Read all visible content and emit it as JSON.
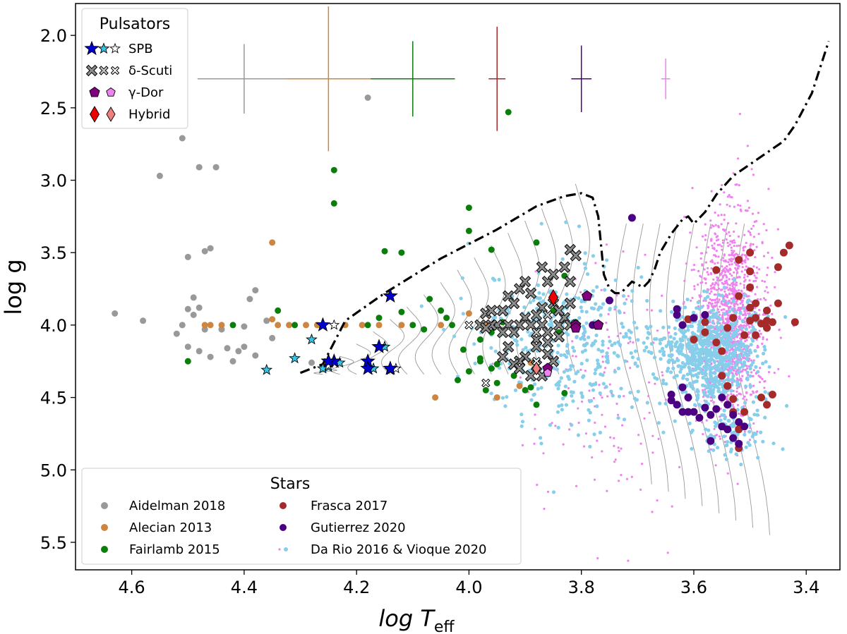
{
  "chart_data": {
    "type": "scatter",
    "xlabel_main": "log T",
    "xlabel_sub": "eff",
    "ylabel": "log g",
    "xlim": [
      4.7,
      3.34
    ],
    "ylim": [
      5.69,
      1.78
    ],
    "x_ticks": [
      "4.6",
      "4.4",
      "4.2",
      "4.0",
      "3.8",
      "3.6",
      "3.4"
    ],
    "x_tick_values": [
      4.6,
      4.4,
      4.2,
      4.0,
      3.8,
      3.6,
      3.4
    ],
    "y_ticks": [
      "2.0",
      "2.5",
      "3.0",
      "3.5",
      "4.0",
      "4.5",
      "5.0",
      "5.5"
    ],
    "y_tick_values": [
      2.0,
      2.5,
      3.0,
      3.5,
      4.0,
      4.5,
      5.0,
      5.5
    ],
    "colors": {
      "aidelman": "#999999",
      "alecian": "#cd853f",
      "fairlamb": "#0b7d0b",
      "frasca": "#a52a2a",
      "gutierrez": "#4b0082",
      "darioVioque": "#87ceeb",
      "darioPink": "#ee82ee",
      "spbDark": "#0000cc",
      "spbLight": "#33c4e6",
      "deltaGray": "#8c8c8c",
      "gammaDark": "#800080",
      "gammaLight": "#ee82ee",
      "hybridDark": "#ee0000",
      "hybridLight": "#f08080"
    },
    "error_bars": [
      {
        "x": 4.4,
        "y": 2.3,
        "dx": 0.083,
        "dy_up": 0.24,
        "dy_down": 0.24,
        "color": "#999999"
      },
      {
        "x": 4.25,
        "y": 2.3,
        "dx": 0.075,
        "dy_up": 0.5,
        "dy_down": 0.5,
        "color": "#cd853f"
      },
      {
        "x": 4.1,
        "y": 2.3,
        "dx": 0.075,
        "dy_up": 0.26,
        "dy_down": 0.26,
        "color": "#0b7d0b"
      },
      {
        "x": 3.95,
        "y": 2.3,
        "dx": 0.015,
        "dy_up": 0.36,
        "dy_down": 0.36,
        "color": "#a52a2a"
      },
      {
        "x": 3.8,
        "y": 2.3,
        "dx": 0.018,
        "dy_up": 0.23,
        "dy_down": 0.23,
        "color": "#4b0082"
      },
      {
        "x": 3.65,
        "y": 2.3,
        "dx": 0.008,
        "dy_up": 0.14,
        "dy_down": 0.14,
        "color": "#ee82ee"
      }
    ],
    "series": [
      {
        "name": "Aidelman 2018",
        "marker": "circle",
        "color": "#999999",
        "points": [
          [
            4.63,
            3.92
          ],
          [
            4.58,
            3.97
          ],
          [
            4.55,
            2.97
          ],
          [
            4.51,
            2.71
          ],
          [
            4.5,
            3.53
          ],
          [
            4.49,
            3.81
          ],
          [
            4.48,
            3.88
          ],
          [
            4.47,
            3.49
          ],
          [
            4.46,
            3.47
          ],
          [
            4.45,
            2.91
          ],
          [
            4.48,
            2.91
          ],
          [
            4.5,
            3.89
          ],
          [
            4.49,
            3.93
          ],
          [
            4.51,
            4.0
          ],
          [
            4.52,
            4.06
          ],
          [
            4.47,
            4.03
          ],
          [
            4.5,
            4.15
          ],
          [
            4.48,
            4.18
          ],
          [
            4.44,
            4.03
          ],
          [
            4.43,
            4.16
          ],
          [
            4.41,
            4.18
          ],
          [
            4.42,
            4.25
          ],
          [
            4.39,
            3.82
          ],
          [
            4.38,
            3.76
          ],
          [
            4.36,
            3.97
          ],
          [
            4.4,
            4.01
          ],
          [
            4.35,
            4.09
          ],
          [
            4.38,
            4.21
          ],
          [
            4.46,
            4.22
          ],
          [
            4.28,
            4.26
          ],
          [
            4.18,
            2.43
          ],
          [
            4.4,
            4.15
          ]
        ]
      },
      {
        "name": "Alecian 2013",
        "marker": "circle",
        "color": "#cd853f",
        "points": [
          [
            4.47,
            4.0
          ],
          [
            4.44,
            4.0
          ],
          [
            4.46,
            4.0
          ],
          [
            4.34,
            4.0
          ],
          [
            4.29,
            4.0
          ],
          [
            4.35,
            3.96
          ],
          [
            4.32,
            4.0
          ],
          [
            4.27,
            4.0
          ],
          [
            4.16,
            4.0
          ],
          [
            4.12,
            4.0
          ],
          [
            4.35,
            3.43
          ],
          [
            4.22,
            4.0
          ],
          [
            4.19,
            4.0
          ],
          [
            4.05,
            4.0
          ],
          [
            4.0,
            3.92
          ],
          [
            4.06,
            4.5
          ],
          [
            3.95,
            4.5
          ],
          [
            3.97,
            4.0
          ],
          [
            3.91,
            4.42
          ],
          [
            3.89,
            4.26
          ],
          [
            3.86,
            4.33
          ]
        ]
      },
      {
        "name": "Fairlamb 2015",
        "marker": "circle",
        "color": "#0b7d0b",
        "points": [
          [
            4.5,
            4.25
          ],
          [
            4.42,
            4.0
          ],
          [
            4.34,
            3.9
          ],
          [
            4.31,
            4.0
          ],
          [
            4.24,
            2.93
          ],
          [
            4.24,
            3.16
          ],
          [
            4.15,
            3.49
          ],
          [
            4.12,
            3.5
          ],
          [
            4.18,
            4.0
          ],
          [
            4.16,
            3.95
          ],
          [
            4.1,
            4.0
          ],
          [
            4.03,
            4.0
          ],
          [
            4.07,
            3.82
          ],
          [
            4.05,
            3.9
          ],
          [
            4.04,
            3.95
          ],
          [
            4.0,
            3.19
          ],
          [
            4.0,
            3.35
          ],
          [
            3.96,
            3.48
          ],
          [
            3.93,
            2.53
          ],
          [
            4.01,
            4.17
          ],
          [
            4.0,
            4.32
          ],
          [
            4.02,
            4.38
          ],
          [
            3.98,
            4.23
          ],
          [
            3.96,
            4.05
          ],
          [
            3.98,
            4.25
          ],
          [
            3.95,
            4.27
          ],
          [
            3.96,
            4.3
          ],
          [
            3.92,
            4.35
          ],
          [
            3.95,
            4.4
          ],
          [
            3.89,
            4.43
          ],
          [
            3.88,
            4.55
          ],
          [
            3.85,
            3.9
          ],
          [
            3.84,
            4.05
          ],
          [
            3.83,
            4.47
          ],
          [
            3.81,
            3.98
          ],
          [
            3.83,
            3.66
          ],
          [
            3.88,
            3.43
          ],
          [
            4.12,
            3.91
          ],
          [
            4.08,
            4.03
          ],
          [
            3.98,
            4.1
          ],
          [
            3.94,
            3.98
          ],
          [
            3.9,
            4.45
          ],
          [
            3.97,
            4.45
          ]
        ]
      },
      {
        "name": "Frasca 2017",
        "marker": "circle",
        "color": "#a52a2a",
        "points": [
          [
            3.58,
            3.98
          ],
          [
            3.56,
            4.12
          ],
          [
            3.55,
            4.18
          ],
          [
            3.55,
            4.35
          ],
          [
            3.54,
            4.42
          ],
          [
            3.53,
            4.51
          ],
          [
            3.53,
            4.6
          ],
          [
            3.52,
            4.72
          ],
          [
            3.52,
            4.85
          ],
          [
            3.51,
            4.6
          ],
          [
            3.5,
            3.5
          ],
          [
            3.5,
            3.63
          ],
          [
            3.5,
            3.74
          ],
          [
            3.49,
            3.85
          ],
          [
            3.49,
            3.95
          ],
          [
            3.48,
            3.99
          ],
          [
            3.47,
            3.9
          ],
          [
            3.47,
            4.02
          ],
          [
            3.46,
            3.98
          ],
          [
            3.45,
            3.85
          ],
          [
            3.45,
            3.6
          ],
          [
            3.44,
            3.5
          ],
          [
            3.43,
            3.45
          ],
          [
            3.42,
            3.98
          ],
          [
            3.52,
            3.55
          ],
          [
            3.5,
            3.97
          ],
          [
            3.51,
            4.07
          ],
          [
            3.48,
            4.5
          ],
          [
            3.47,
            4.55
          ],
          [
            3.46,
            4.48
          ],
          [
            3.49,
            4.07
          ],
          [
            3.53,
            3.95
          ],
          [
            3.56,
            3.62
          ],
          [
            3.6,
            4.1
          ],
          [
            3.61,
            3.96
          ],
          [
            3.58,
            4.05
          ],
          [
            3.54,
            4.02
          ],
          [
            3.52,
            3.8
          ],
          [
            3.5,
            3.88
          ],
          [
            3.47,
            3.97
          ]
        ]
      },
      {
        "name": "Gutierrez 2020",
        "marker": "circle",
        "color": "#4b0082",
        "points": [
          [
            3.71,
            3.26
          ],
          [
            3.78,
            4.0
          ],
          [
            3.75,
            3.83
          ],
          [
            3.63,
            3.89
          ],
          [
            3.63,
            3.93
          ],
          [
            3.62,
            4.0
          ],
          [
            3.64,
            4.48
          ],
          [
            3.64,
            4.52
          ],
          [
            3.63,
            4.55
          ],
          [
            3.62,
            4.6
          ],
          [
            3.61,
            4.5
          ],
          [
            3.6,
            4.6
          ],
          [
            3.59,
            4.64
          ],
          [
            3.58,
            4.57
          ],
          [
            3.57,
            4.62
          ],
          [
            3.55,
            4.7
          ],
          [
            3.54,
            4.72
          ],
          [
            3.53,
            4.62
          ],
          [
            3.52,
            4.67
          ],
          [
            3.51,
            4.7
          ],
          [
            3.58,
            3.93
          ],
          [
            3.6,
            3.95
          ],
          [
            3.55,
            4.5
          ],
          [
            3.56,
            4.58
          ],
          [
            3.62,
            4.43
          ],
          [
            3.61,
            4.6
          ],
          [
            3.53,
            4.78
          ],
          [
            3.54,
            4.55
          ],
          [
            3.57,
            4.8
          ],
          [
            3.52,
            4.82
          ]
        ]
      },
      {
        "name": "Da Rio 2016 & Vioque 2020",
        "marker": "dot",
        "color": "#87ceeb",
        "alt_color": "#ee82ee",
        "generated": true
      }
    ],
    "pulsators": {
      "spb_dark": [
        [
          4.26,
          4.0
        ],
        [
          4.24,
          4.25
        ],
        [
          4.25,
          4.25
        ],
        [
          4.16,
          4.15
        ],
        [
          4.18,
          4.25
        ],
        [
          4.14,
          3.8
        ],
        [
          4.18,
          4.3
        ],
        [
          4.14,
          4.3
        ],
        [
          4.25,
          4.25
        ]
      ],
      "spb_light": [
        [
          4.36,
          4.31
        ],
        [
          4.31,
          4.23
        ],
        [
          4.28,
          4.1
        ],
        [
          4.25,
          4.29
        ],
        [
          4.23,
          4.26
        ],
        [
          4.15,
          4.15
        ],
        [
          4.14,
          4.31
        ],
        [
          4.17,
          4.3
        ],
        [
          4.26,
          4.3
        ]
      ],
      "spb_white": [
        [
          4.24,
          4.0
        ],
        [
          4.25,
          4.28
        ],
        [
          4.13,
          4.3
        ]
      ],
      "delta_gray": [
        [
          3.98,
          4.0
        ],
        [
          3.97,
          3.92
        ],
        [
          3.96,
          3.9
        ],
        [
          3.94,
          3.9
        ],
        [
          3.93,
          3.8
        ],
        [
          3.92,
          3.85
        ],
        [
          3.91,
          3.75
        ],
        [
          3.9,
          3.7
        ],
        [
          3.89,
          3.78
        ],
        [
          3.87,
          3.6
        ],
        [
          3.86,
          3.7
        ],
        [
          3.85,
          3.65
        ],
        [
          3.83,
          3.6
        ],
        [
          3.82,
          3.48
        ],
        [
          3.81,
          3.52
        ],
        [
          3.82,
          3.7
        ],
        [
          3.85,
          3.85
        ],
        [
          3.87,
          3.88
        ],
        [
          3.88,
          3.93
        ],
        [
          3.9,
          3.95
        ],
        [
          3.91,
          4.0
        ],
        [
          3.93,
          4.0
        ],
        [
          3.95,
          4.0
        ],
        [
          3.96,
          4.0
        ],
        [
          3.97,
          4.02
        ],
        [
          3.92,
          4.05
        ],
        [
          3.89,
          4.0
        ],
        [
          3.88,
          4.1
        ],
        [
          3.87,
          4.0
        ],
        [
          3.86,
          4.05
        ],
        [
          3.84,
          4.0
        ],
        [
          3.83,
          3.95
        ],
        [
          3.82,
          4.0
        ],
        [
          3.84,
          4.08
        ],
        [
          3.86,
          4.12
        ],
        [
          3.88,
          4.15
        ],
        [
          3.9,
          4.22
        ],
        [
          3.91,
          4.25
        ],
        [
          3.92,
          4.27
        ],
        [
          3.94,
          4.22
        ],
        [
          3.89,
          4.35
        ],
        [
          3.87,
          4.35
        ],
        [
          3.85,
          4.25
        ],
        [
          3.82,
          3.85
        ],
        [
          3.84,
          3.9
        ],
        [
          3.86,
          4.2
        ],
        [
          3.88,
          4.28
        ],
        [
          3.91,
          4.3
        ],
        [
          3.93,
          4.15
        ],
        [
          3.94,
          4.05
        ]
      ],
      "delta_mid": [
        [
          3.86,
          3.93
        ],
        [
          3.88,
          4.05
        ]
      ],
      "delta_white": [
        [
          4.0,
          4.0
        ],
        [
          3.97,
          4.4
        ],
        [
          3.88,
          4.25
        ]
      ],
      "gamma_dark": [
        [
          3.86,
          4.3
        ],
        [
          3.81,
          4.0
        ],
        [
          3.79,
          3.8
        ],
        [
          3.77,
          4.0
        ],
        [
          3.81,
          4.02
        ]
      ],
      "gamma_light": [
        [
          3.86,
          4.33
        ]
      ],
      "hybrid_dark": [
        [
          3.85,
          3.81
        ]
      ],
      "hybrid_light": [
        [
          3.88,
          4.3
        ]
      ]
    },
    "legend_pulsators": {
      "title": "Pulsators",
      "items": [
        "SPB",
        "δ-Scuti",
        "γ-Dor",
        "Hybrid"
      ]
    },
    "legend_stars": {
      "title": "Stars",
      "items": [
        "Aidelman 2018",
        "Alecian 2013",
        "Fairlamb 2015",
        "Frasca 2017",
        "Gutierrez 2020",
        "Da Rio 2016 & Vioque 2020"
      ]
    },
    "zams_dashdot": [
      [
        4.3,
        4.33
      ],
      [
        4.28,
        4.3
      ],
      [
        4.26,
        4.27
      ],
      [
        4.24,
        4.12
      ],
      [
        4.22,
        3.97
      ],
      [
        4.15,
        3.78
      ],
      [
        4.05,
        3.54
      ],
      [
        3.95,
        3.34
      ],
      [
        3.88,
        3.18
      ],
      [
        3.83,
        3.11
      ],
      [
        3.8,
        3.09
      ],
      [
        3.78,
        3.12
      ],
      [
        3.77,
        3.25
      ],
      [
        3.765,
        3.45
      ],
      [
        3.76,
        3.65
      ],
      [
        3.75,
        3.75
      ],
      [
        3.74,
        3.78
      ],
      [
        3.73,
        3.78
      ],
      [
        3.72,
        3.74
      ],
      [
        3.71,
        3.7
      ],
      [
        3.69,
        3.74
      ],
      [
        3.68,
        3.7
      ],
      [
        3.67,
        3.62
      ],
      [
        3.66,
        3.5
      ],
      [
        3.64,
        3.37
      ],
      [
        3.62,
        3.27
      ],
      [
        3.61,
        3.25
      ],
      [
        3.6,
        3.3
      ],
      [
        3.58,
        3.22
      ],
      [
        3.56,
        3.1
      ],
      [
        3.53,
        2.97
      ],
      [
        3.5,
        2.89
      ],
      [
        3.47,
        2.81
      ],
      [
        3.44,
        2.73
      ],
      [
        3.42,
        2.62
      ],
      [
        3.39,
        2.4
      ],
      [
        3.36,
        2.04
      ]
    ]
  }
}
